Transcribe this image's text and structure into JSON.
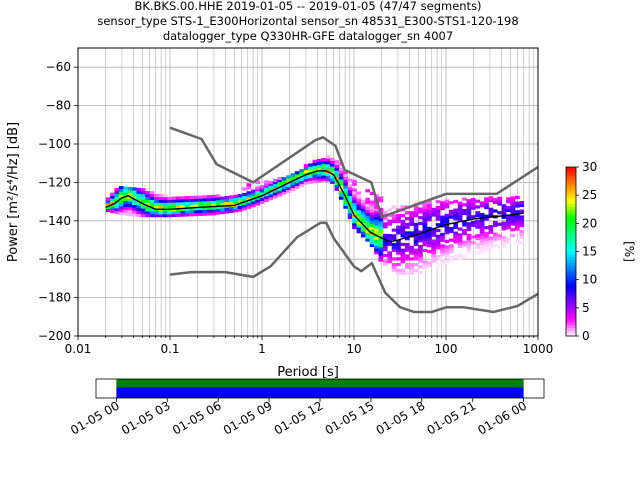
{
  "chart_data": {
    "type": "heatmap",
    "title_lines": [
      "BK.BKS.00.HHE   2019-01-05 -- 2019-01-05  (47/47 segments)",
      "sensor_type STS-1_E300Horizontal sensor_sn 48531_E300-STS1-120-198",
      "datalogger_type Q330HR-GFE datalogger_sn 4007"
    ],
    "xlabel": "Period [s]",
    "ylabel": "Power [m²/s⁴/Hz] [dB]",
    "xscale": "log",
    "xlim": [
      0.01,
      1000
    ],
    "ylim": [
      -200,
      -50
    ],
    "x_ticks": [
      {
        "v": 0.01,
        "label": "0.01"
      },
      {
        "v": 0.1,
        "label": "0.1"
      },
      {
        "v": 1,
        "label": "1"
      },
      {
        "v": 10,
        "label": "10"
      },
      {
        "v": 100,
        "label": "100"
      },
      {
        "v": 1000,
        "label": "1000"
      }
    ],
    "y_ticks": [
      {
        "v": -60,
        "label": "−60"
      },
      {
        "v": -80,
        "label": "−80"
      },
      {
        "v": -100,
        "label": "−100"
      },
      {
        "v": -120,
        "label": "−120"
      },
      {
        "v": -140,
        "label": "−140"
      },
      {
        "v": -160,
        "label": "−160"
      },
      {
        "v": -180,
        "label": "−180"
      },
      {
        "v": -200,
        "label": "−200"
      }
    ],
    "grid": true,
    "colorbar": {
      "label": "[%]",
      "range": [
        0,
        30
      ],
      "ticks": [
        {
          "v": 0,
          "label": "0"
        },
        {
          "v": 5,
          "label": "5"
        },
        {
          "v": 10,
          "label": "10"
        },
        {
          "v": 15,
          "label": "15"
        },
        {
          "v": 20,
          "label": "20"
        },
        {
          "v": 25,
          "label": "25"
        },
        {
          "v": 30,
          "label": "30"
        }
      ],
      "colors": [
        "#ffffff",
        "#ff00ff",
        "#8000ff",
        "#0000ff",
        "#0080ff",
        "#00ffff",
        "#00ff80",
        "#00ff00",
        "#ffff00",
        "#ff8000",
        "#ff0000"
      ]
    },
    "mode_line": {
      "period": [
        0.02,
        0.025,
        0.03,
        0.035,
        0.05,
        0.07,
        0.1,
        0.2,
        0.5,
        1,
        2,
        3,
        4,
        5,
        6,
        8,
        10,
        15,
        20,
        25,
        30,
        50,
        100,
        200,
        500,
        700
      ],
      "power": [
        -133,
        -131,
        -128,
        -127,
        -131,
        -134,
        -134,
        -133,
        -132,
        -127,
        -120,
        -116,
        -114,
        -114,
        -116,
        -127,
        -137,
        -146,
        -149,
        -151,
        -150,
        -147,
        -142,
        -139,
        -137,
        -136
      ]
    },
    "histogram_band": {
      "period": [
        0.02,
        0.03,
        0.05,
        0.1,
        0.3,
        0.6,
        1,
        2,
        3,
        4,
        5,
        6,
        8,
        10,
        15,
        20,
        30,
        50,
        100,
        200,
        500,
        700
      ],
      "upper": [
        -129,
        -122,
        -124,
        -128,
        -128,
        -126,
        -123,
        -116,
        -112,
        -109,
        -107,
        -108,
        -115,
        -126,
        -132,
        -135,
        -133,
        -131,
        -130,
        -129,
        -128,
        -128
      ],
      "lower": [
        -135,
        -137,
        -138,
        -138,
        -137,
        -135,
        -131,
        -125,
        -121,
        -120,
        -119,
        -121,
        -133,
        -144,
        -152,
        -162,
        -168,
        -168,
        -162,
        -158,
        -153,
        -152
      ],
      "sparse_upper": [
        -121,
        -120,
        -118,
        -116,
        -113,
        -110,
        -108,
        -108,
        -112,
        -119,
        -126,
        -128,
        -128,
        -128,
        -127
      ],
      "sparse_period": [
        0.6,
        1,
        1.5,
        2,
        3,
        4,
        5,
        6,
        8,
        10,
        15,
        20,
        50,
        200,
        700
      ]
    },
    "noise_models": {
      "high": {
        "period": [
          0.1,
          0.22,
          0.32,
          0.8,
          3.8,
          4.6,
          6.3,
          7.9,
          15.4,
          20,
          100,
          354.8,
          1000
        ],
        "power": [
          -91.5,
          -97.4,
          -110.5,
          -120,
          -98,
          -96.5,
          -101,
          -113.5,
          -120,
          -138,
          -126,
          -126,
          -112
        ]
      },
      "low": {
        "period": [
          0.1,
          0.17,
          0.4,
          0.8,
          1.24,
          2.4,
          4.3,
          5,
          6,
          10,
          12,
          15.6,
          21.9,
          31.6,
          45,
          70,
          101,
          154,
          328,
          600,
          1000
        ],
        "power": [
          -168,
          -166.7,
          -166.7,
          -169.2,
          -163.7,
          -148.6,
          -141.1,
          -141.1,
          -149,
          -163.8,
          -166.2,
          -162.1,
          -177.5,
          -185,
          -187.5,
          -187.5,
          -185,
          -185,
          -187.5,
          -184.4,
          -178
        ]
      }
    },
    "timeline": {
      "tick_labels": [
        "01-05 00",
        "01-05 03",
        "01-05 06",
        "01-05 09",
        "01-05 12",
        "01-05 15",
        "01-05 18",
        "01-05 21",
        "01-06 00"
      ],
      "data_start_hour": 0,
      "data_end_hour": 24,
      "range_hours": [
        -1.2,
        25.2
      ],
      "band_colors": [
        "#008000",
        "#0000ff"
      ]
    }
  }
}
